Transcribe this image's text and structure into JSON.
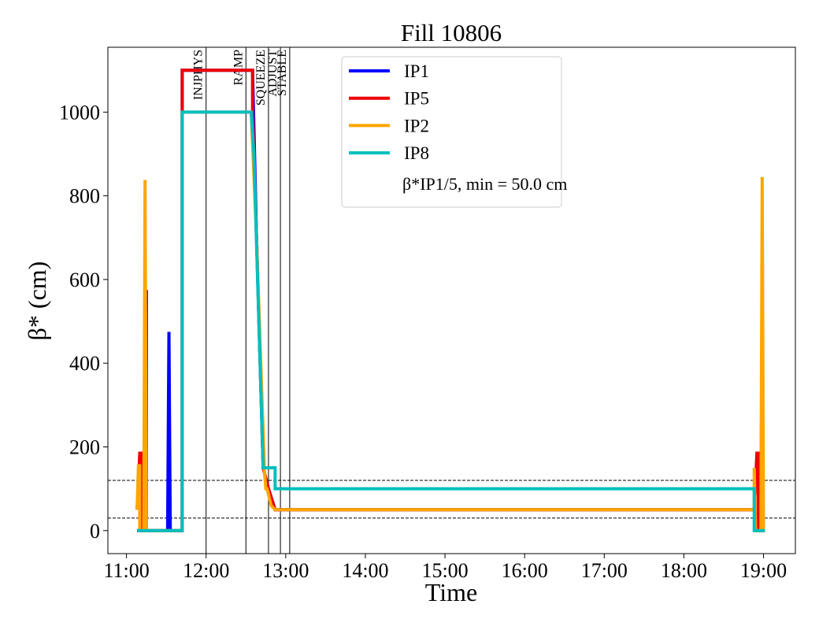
{
  "chart_data": {
    "type": "line",
    "title": "Fill 10806",
    "xlabel": "Time",
    "ylabel": "β* (cm)",
    "xlim": [
      "10:46",
      "19:24"
    ],
    "xticks": [
      "11:00",
      "12:00",
      "13:00",
      "14:00",
      "15:00",
      "16:00",
      "17:00",
      "18:00",
      "19:00"
    ],
    "ylim": [
      -55,
      1155
    ],
    "yticks": [
      0,
      200,
      400,
      600,
      800,
      1000
    ],
    "legend": "upper center",
    "legend_note": "β*IP1/5, min = 50.0 cm",
    "hlines": [
      30,
      120
    ],
    "phases": [
      {
        "label": "INJPHYS",
        "time": "12:00"
      },
      {
        "label": "RAMP",
        "time": "12:30"
      },
      {
        "label": "SQUEEZE",
        "time": "12:47"
      },
      {
        "label": "ADJUST",
        "time": "12:56"
      },
      {
        "label": "STABLE",
        "time": "13:03"
      }
    ],
    "series": [
      {
        "name": "IP1",
        "color": "#0000ff",
        "x": [
          "11:08",
          "11:14",
          "11:15",
          "11:15",
          "11:31",
          "11:32",
          "11:33",
          "11:42",
          "11:42",
          "12:35",
          "12:38",
          "12:43",
          "12:47",
          "12:52",
          "18:53",
          "18:56",
          "18:58",
          "18:59",
          "18:59",
          "19:01"
        ],
        "values": [
          0,
          0,
          575,
          0,
          0,
          475,
          0,
          0,
          1100,
          1100,
          700,
          150,
          100,
          50,
          50,
          0,
          0,
          568,
          0,
          0
        ]
      },
      {
        "name": "IP5",
        "color": "#ee0000",
        "x": [
          "11:08",
          "11:10",
          "11:11",
          "11:11",
          "11:42",
          "11:42",
          "11:42",
          "12:35",
          "12:35",
          "12:38",
          "12:43",
          "12:47",
          "12:52",
          "18:53",
          "18:55",
          "18:56",
          "18:56",
          "19:01"
        ],
        "values": [
          50,
          185,
          185,
          0,
          0,
          1000,
          1100,
          1100,
          1000,
          700,
          150,
          100,
          50,
          50,
          185,
          185,
          0,
          0
        ]
      },
      {
        "name": "IP2",
        "color": "#ffa500",
        "x": [
          "11:08",
          "11:09",
          "11:10",
          "11:10",
          "11:13",
          "11:14",
          "11:15",
          "11:42",
          "11:42",
          "12:34",
          "12:38",
          "12:44",
          "12:45",
          "12:46",
          "12:49",
          "12:52",
          "18:53",
          "18:53",
          "18:54",
          "18:58",
          "18:59",
          "19:00",
          "19:01"
        ],
        "values": [
          50,
          155,
          155,
          0,
          0,
          838,
          0,
          0,
          1000,
          1000,
          700,
          140,
          100,
          100,
          60,
          50,
          50,
          150,
          0,
          0,
          845,
          0,
          0
        ]
      },
      {
        "name": "IP8",
        "color": "#00bfbf",
        "x": [
          "11:08",
          "11:42",
          "11:42",
          "12:34",
          "12:36",
          "12:43",
          "12:52",
          "12:52",
          "18:53",
          "18:53",
          "19:01"
        ],
        "values": [
          0,
          0,
          1000,
          1000,
          900,
          150,
          150,
          100,
          100,
          0,
          0
        ]
      }
    ]
  }
}
